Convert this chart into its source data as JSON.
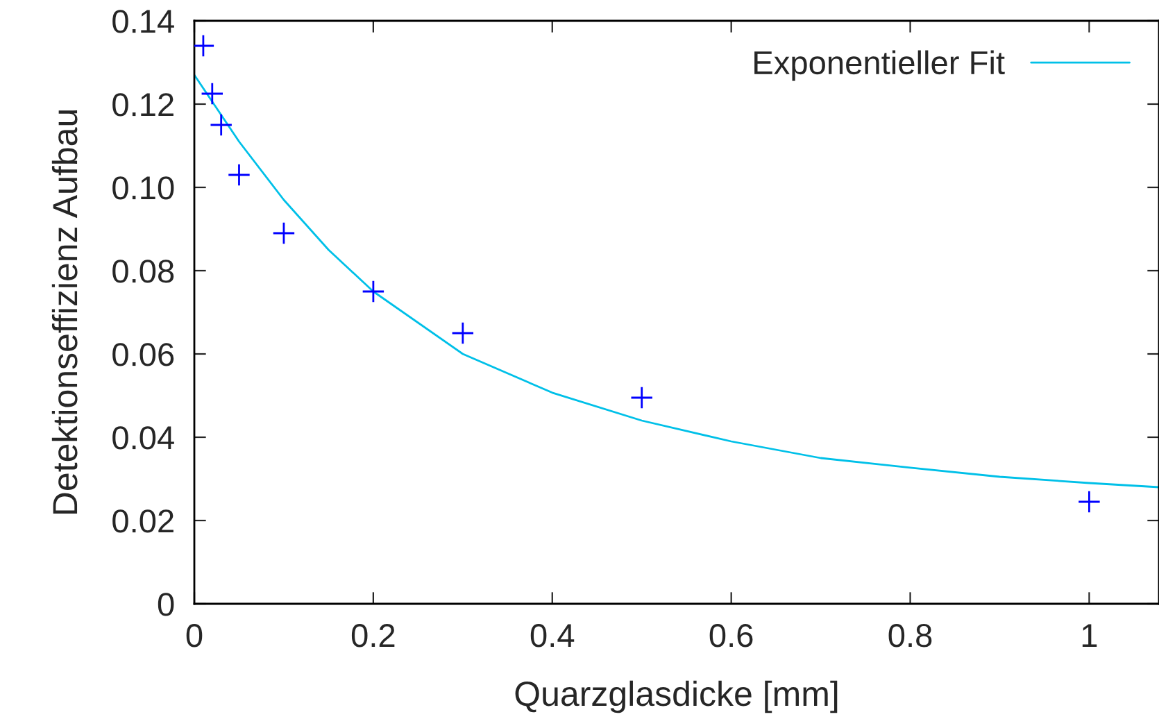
{
  "chart_data": {
    "type": "scatter",
    "xlabel": "Quarzglasdicke [mm]",
    "ylabel": "Detektionseffizienz Aufbau",
    "xlim": [
      0,
      1.078
    ],
    "xticks": [
      0,
      0.2,
      0.4,
      0.6,
      0.8,
      1
    ],
    "ylim": [
      0,
      0.14
    ],
    "yticks": [
      0,
      {
        "value": 0.02,
        "label": "0.02"
      },
      {
        "value": 0.04,
        "label": "0.04"
      },
      {
        "value": 0.06,
        "label": "0.06"
      },
      {
        "value": 0.08,
        "label": "0.08"
      },
      {
        "value": 0.1,
        "label": "0.10"
      },
      {
        "value": 0.12,
        "label": "0.12"
      },
      {
        "value": 0.14,
        "label": "0.14"
      }
    ],
    "grid": false,
    "legend": "top right",
    "series": [
      {
        "marker": "cross",
        "color": "#0000ff",
        "x": [
          0.01,
          0.02,
          0.03,
          0.05,
          0.1,
          0.2,
          0.3,
          0.5,
          1.0
        ],
        "values": [
          0.134,
          0.1225,
          0.115,
          0.103,
          0.089,
          0.075,
          0.065,
          0.0495,
          0.0245
        ]
      },
      {
        "type": "line",
        "name": "Exponentieller Fit",
        "color": "#00c0e8",
        "x": [
          0,
          0.05,
          0.1,
          0.15,
          0.2,
          0.3,
          0.4,
          0.5,
          0.6,
          0.7,
          0.8,
          0.9,
          1.0,
          1.078
        ],
        "values": [
          0.127,
          0.111,
          0.097,
          0.085,
          0.075,
          0.06,
          0.0507,
          0.044,
          0.039,
          0.035,
          0.0327,
          0.0305,
          0.029,
          0.028
        ]
      }
    ]
  }
}
